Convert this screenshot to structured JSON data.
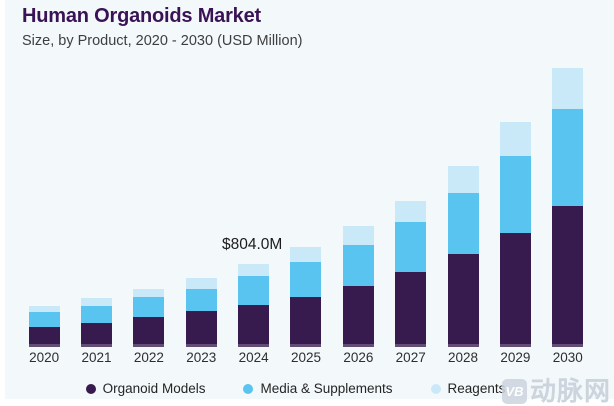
{
  "watermark": {
    "logo": "VB",
    "text": "动脉网"
  },
  "chart_data": {
    "type": "bar",
    "stacked": true,
    "title": "Human Organoids Market",
    "subtitle": "Size, by Product, 2020 - 2030 (USD Million)",
    "unit": "USD Million",
    "categories": [
      "2020",
      "2021",
      "2022",
      "2023",
      "2024",
      "2025",
      "2026",
      "2027",
      "2028",
      "2029",
      "2030"
    ],
    "series": [
      {
        "name": "Organoid Models",
        "color": "#371B4E",
        "values": [
          197,
          230,
          288,
          346,
          406.9,
          487,
          588,
          730,
          898,
          1101,
          1369
        ]
      },
      {
        "name": "Media & Supplements",
        "color": "#58C4EF",
        "values": [
          139,
          165,
          194,
          216,
          283.8,
          339,
          400,
          478,
          594,
          746,
          937
        ]
      },
      {
        "name": "Reagents",
        "color": "#C9E9F9",
        "values": [
          64,
          80,
          80,
          104,
          113.3,
          139,
          181,
          209,
          259,
          329,
          393
        ]
      }
    ],
    "totals": [
      400,
      475,
      562,
      666,
      804.0,
      965,
      1169,
      1417,
      1751,
      2176,
      2699
    ],
    "annotations": [
      {
        "category": "2024",
        "text": "$804.0M"
      }
    ],
    "ylim": [
      0,
      2780
    ],
    "grid": false,
    "legend_position": "bottom",
    "background_color": "#F3F8FA",
    "title_color": "#3A1356"
  }
}
